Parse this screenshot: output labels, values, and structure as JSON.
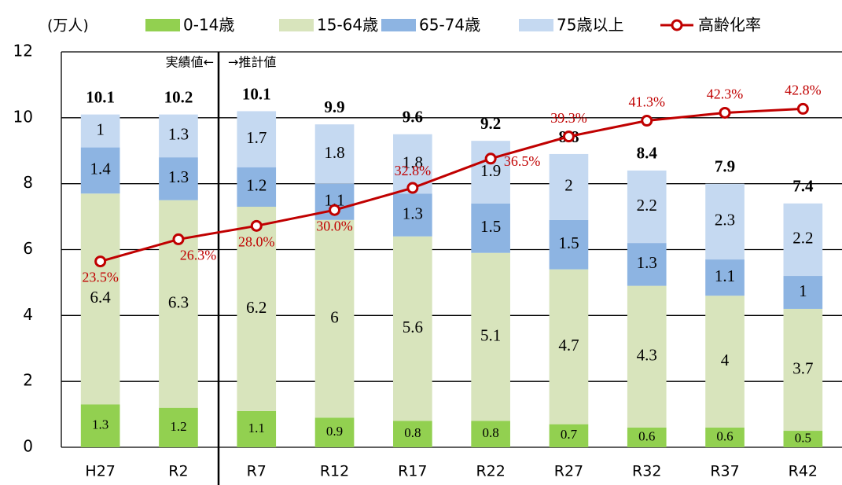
{
  "chart_data": {
    "type": "bar",
    "stacked": true,
    "unit_label": "(万人)",
    "annotations": [
      "実績値←",
      "→推計値"
    ],
    "categories": [
      "H27",
      "R2",
      "R7",
      "R12",
      "R17",
      "R22",
      "R27",
      "R32",
      "R37",
      "R42"
    ],
    "totals": [
      10.1,
      10.2,
      10.1,
      9.9,
      9.6,
      9.2,
      8.8,
      8.4,
      7.9,
      7.4
    ],
    "series": [
      {
        "name": "0-14歳",
        "color": "#92d050",
        "values": [
          1.3,
          1.2,
          1.1,
          0.9,
          0.8,
          0.8,
          0.7,
          0.6,
          0.6,
          0.5
        ]
      },
      {
        "name": "15-64歳",
        "color": "#d8e4bc",
        "values": [
          6.4,
          6.3,
          6.2,
          6.0,
          5.6,
          5.1,
          4.7,
          4.3,
          4.0,
          3.7
        ]
      },
      {
        "name": "65-74歳",
        "color": "#8db4e2",
        "values": [
          1.4,
          1.3,
          1.2,
          1.1,
          1.3,
          1.5,
          1.5,
          1.3,
          1.1,
          1.0
        ]
      },
      {
        "name": "75歳以上",
        "color": "#c5d9f1",
        "values": [
          1.0,
          1.3,
          1.7,
          1.8,
          1.8,
          1.9,
          2.0,
          2.2,
          2.3,
          2.2
        ]
      },
      {
        "name": "高齢化率",
        "type": "line",
        "axis": "y2",
        "color": "#c00000",
        "values": [
          23.5,
          26.3,
          28.0,
          30.0,
          32.8,
          36.5,
          39.3,
          41.3,
          42.3,
          42.8
        ],
        "value_labels": [
          "23.5%",
          "26.3%",
          "28.0%",
          "30.0%",
          "32.8%",
          "36.5%",
          "39.3%",
          "41.3%",
          "42.3%",
          "42.8%"
        ]
      }
    ],
    "ylim": [
      0,
      12
    ],
    "yticks": [
      0,
      2,
      4,
      6,
      8,
      10,
      12
    ],
    "y2lim": [
      0,
      50
    ],
    "grid": true
  }
}
